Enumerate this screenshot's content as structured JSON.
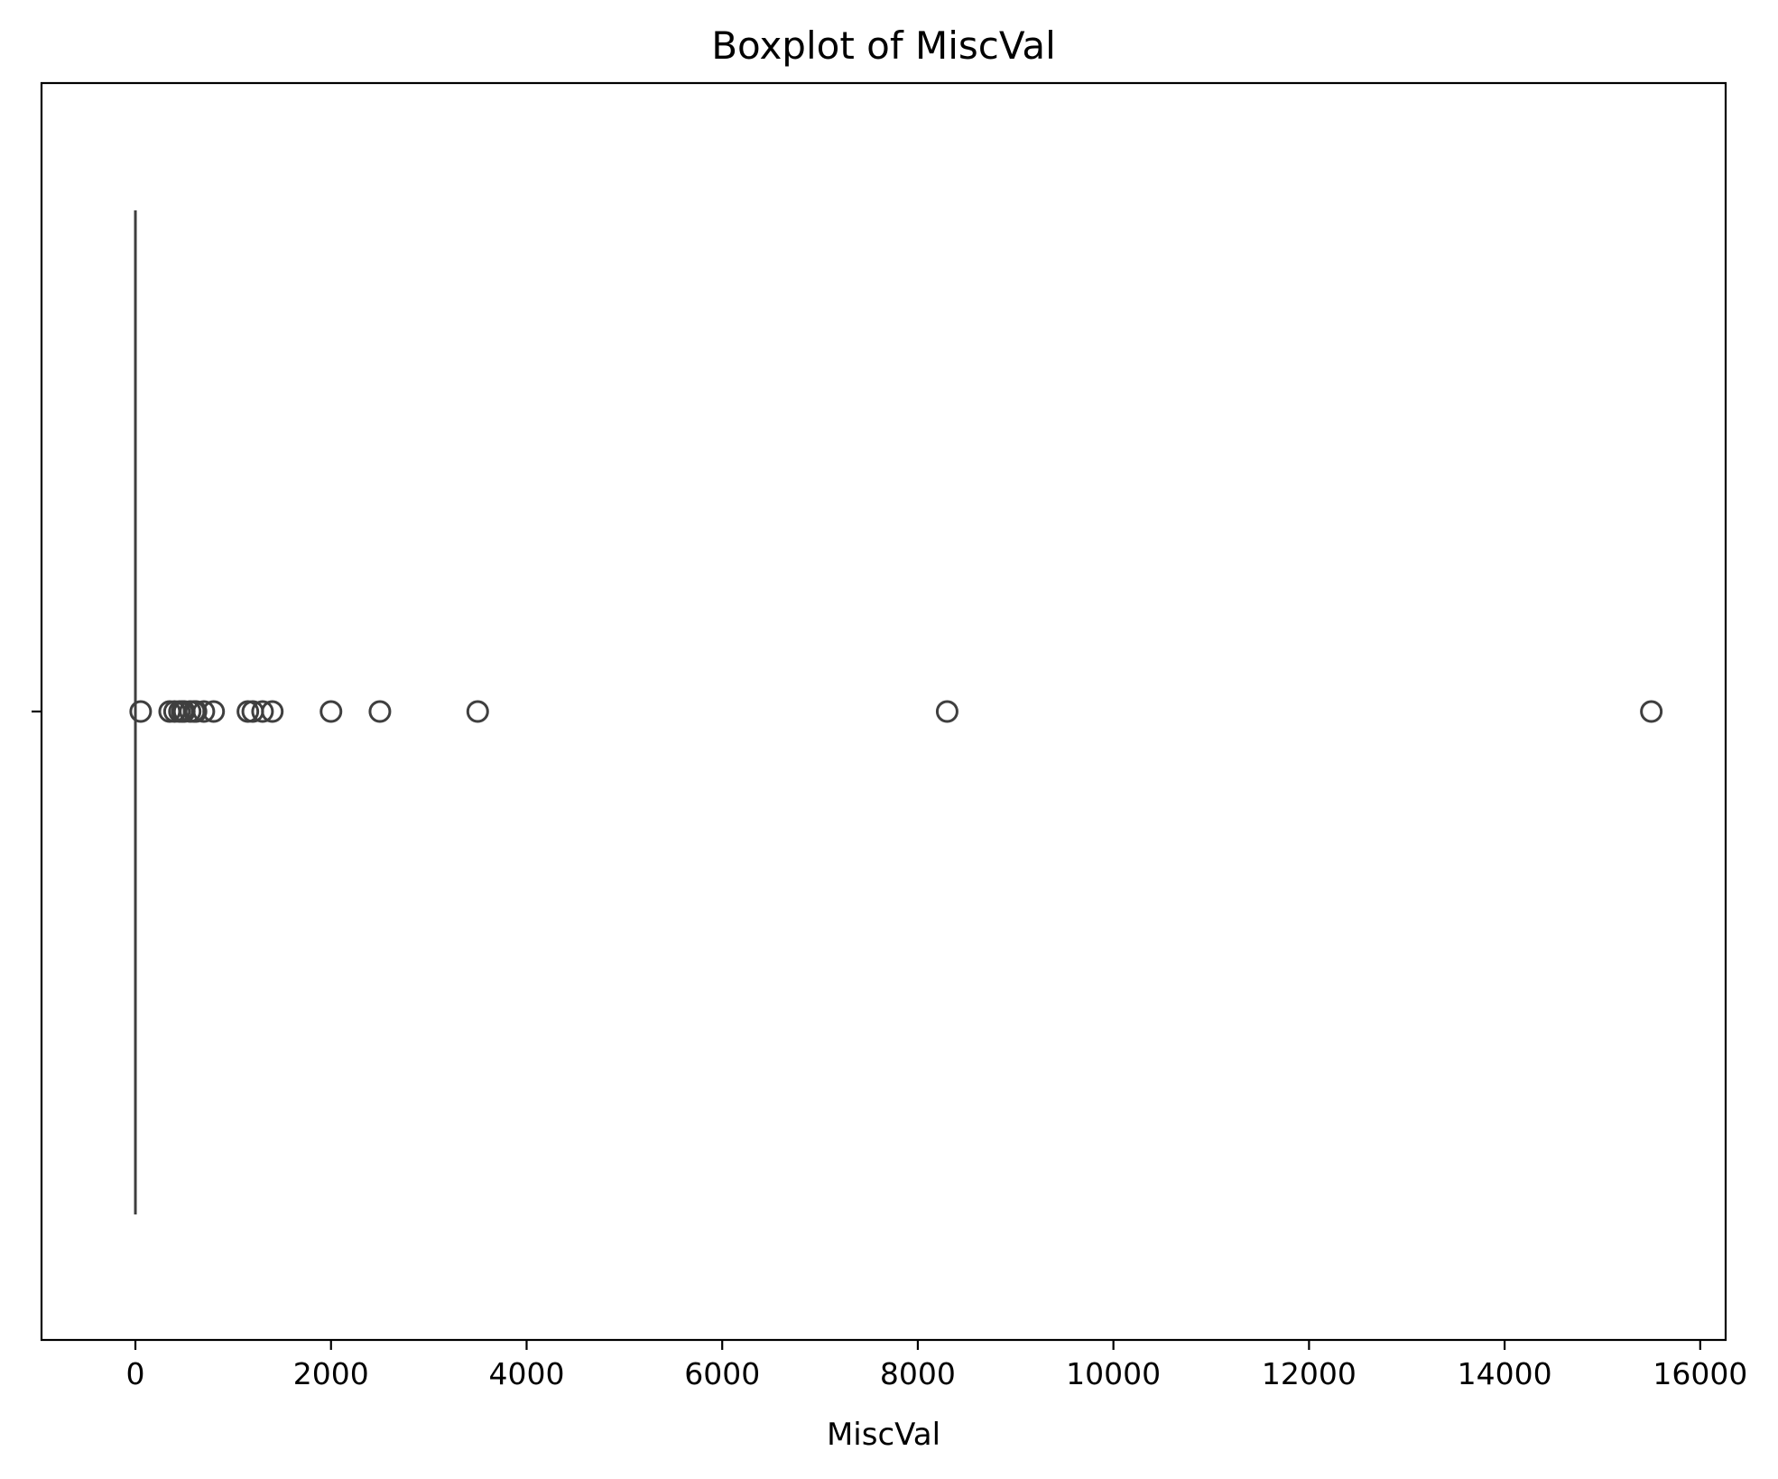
{
  "chart_data": {
    "type": "box",
    "orientation": "horizontal",
    "title": "Boxplot of MiscVal",
    "xlabel": "MiscVal",
    "ylabel": "",
    "xlim": [
      -960,
      16260
    ],
    "xticks": [
      0,
      2000,
      4000,
      6000,
      8000,
      10000,
      12000,
      14000,
      16000
    ],
    "xtick_labels": [
      "0",
      "2000",
      "4000",
      "6000",
      "8000",
      "10000",
      "12000",
      "14000",
      "16000"
    ],
    "grid": false,
    "box": {
      "min": 0,
      "q1": 0,
      "median": 0,
      "q3": 0,
      "max": 0
    },
    "outliers": [
      54,
      350,
      400,
      450,
      480,
      500,
      560,
      600,
      620,
      700,
      800,
      1150,
      1200,
      1300,
      1400,
      2000,
      2500,
      3500,
      8300,
      15500
    ],
    "colors": {
      "box_line": "#3f3f3f",
      "axes": "#000000",
      "background": "#ffffff"
    }
  }
}
